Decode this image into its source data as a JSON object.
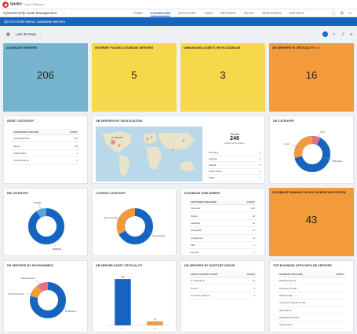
{
  "header": {
    "brand": "Qualys",
    "brand_sub": "Cloud Platform",
    "app_title": "CyberSecurity Asset Management",
    "nav": [
      "HOME",
      "DASHBOARD",
      "INVENTORY",
      "TAGS",
      "NETWORK",
      "RULES",
      "RESPONSES",
      "REPORTS"
    ],
    "active_nav": "DASHBOARD"
  },
  "dashboard": {
    "title": "QLYS-CSAM-Demo: Database Servers",
    "date_range": "Last 30 Days"
  },
  "colors": {
    "brand_blue": "#1565c0",
    "teal": "#75b4cc",
    "yellow": "#f7d84a",
    "orange": "#f39a3a",
    "light_blue": "#5ea4e0",
    "pink": "#e56e8c"
  },
  "kpis": [
    {
      "title": "DATABASE SERVERS",
      "value": "206",
      "color": "teal"
    },
    {
      "title": "INTERNET FACING DATABASE SERVERS",
      "value": "5",
      "color": "yellow"
    },
    {
      "title": "UNMANAGED ASSETS WITH DATABASE",
      "value": "3",
      "color": "yellow"
    },
    {
      "title": "DB SERVERS W CRITICALITY > 3",
      "value": "16",
      "color": "orange"
    }
  ],
  "asset_category": {
    "title": "ASSET CATEGORY",
    "columns": [
      "HARDWARE CATEGORY",
      "COUNT"
    ],
    "rows": [
      {
        "label": "Virtual Machine",
        "value": "152"
      },
      {
        "label": "Server",
        "value": "48"
      },
      {
        "label": "Unidentified",
        "value": "4"
      },
      {
        "label": "Cloud Instance",
        "value": "2"
      }
    ]
  },
  "geolocation": {
    "title": "DB SERVERS BY GEOLOCATION",
    "global_label": "Global",
    "global_value": "248",
    "global_sub": "Assets with Location",
    "map_label": "Canada 59",
    "countries": [
      {
        "label": "Germany",
        "value": "1"
      },
      {
        "label": "Canada",
        "value": "1"
      },
      {
        "label": "Ireland",
        "value": "1"
      },
      {
        "label": "South Korea",
        "value": "1"
      },
      {
        "label": "Spain",
        "value": "1"
      }
    ]
  },
  "os_category": {
    "title": "OS CATEGORY",
    "labels": [
      "Linux",
      "Windows",
      "Unix"
    ]
  },
  "db_category": {
    "title": "DB CATEGORY",
    "labels": [
      "NoSQL",
      "RDBMS"
    ]
  },
  "license_category": {
    "title": "LICENSE CATEGORY",
    "labels": [
      "Open Source",
      "Commercial"
    ]
  },
  "db_publishers": {
    "title": "DATABASE PUBLISHERS",
    "columns": [
      "SOFTWARE PUBLISHER",
      "COUNT"
    ],
    "rows": [
      {
        "label": "Microsoft",
        "value": "108"
      },
      {
        "label": "Oracle",
        "value": "44"
      },
      {
        "label": "MariaDB",
        "value": "33"
      },
      {
        "label": "MongoDB",
        "value": "12"
      },
      {
        "label": "PostgreSQL",
        "value": "12"
      },
      {
        "label": "IBM",
        "value": "1"
      },
      {
        "label": "Apache",
        "value": "1"
      }
    ]
  },
  "eol_os": {
    "title": "DATABASE RUNNING ON EOL OPERATING SYSTEM",
    "value": "43"
  },
  "environment": {
    "title": "DB SERVERS BY ENVIRONMENT",
    "labels": [
      "Development",
      "Pre-Production",
      "Production"
    ]
  },
  "criticality": {
    "title": "DB SERVER ASSET CRITICALITY",
    "chart_data": {
      "type": "bar",
      "categories": [
        "1",
        "2"
      ],
      "values": [
        190,
        16
      ],
      "ylim": [
        0,
        200
      ]
    }
  },
  "support_group": {
    "title": "DB SERVERS BY SUPPORT GROUP",
    "columns": [
      "ASSET SUPPORT GROUP",
      "COUNT"
    ],
    "rows": [
      {
        "label": "IT Operations",
        "value": "11"
      },
      {
        "label": "Corp IT",
        "value": "4"
      },
      {
        "label": "Customer Support",
        "value": "1"
      }
    ]
  },
  "business_apps": {
    "title": "TOP BUSINESS APPS WITH DB SERVERS",
    "columns": [
      "BUSINESS APP NAME",
      "COUNT"
    ],
    "rows": [
      {
        "label": "Banking Service",
        "value": ""
      },
      {
        "label": "Employee Portal",
        "value": ""
      },
      {
        "label": "Sales Portal",
        "value": ""
      },
      {
        "label": "Customer Support Portal",
        "value": ""
      },
      {
        "label": "HR Intranet",
        "value": ""
      },
      {
        "label": "Manufacturing Erw",
        "value": ""
      },
      {
        "label": "Quoting App",
        "value": ""
      }
    ]
  }
}
